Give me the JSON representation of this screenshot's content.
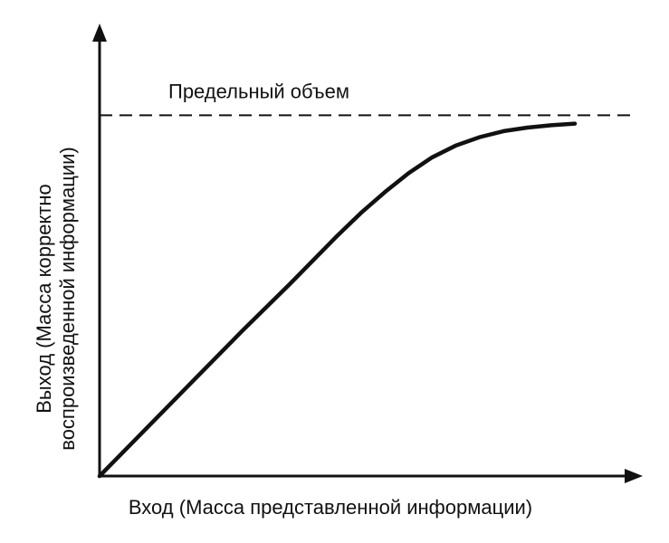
{
  "chart_data": {
    "type": "line",
    "title": "",
    "xlabel": "Вход (Масса представленной информации)",
    "ylabel_line1": "Выход (Масса корректно",
    "ylabel_line2": "воспроизведенной информации)",
    "xlim": [
      0,
      100
    ],
    "ylim": [
      0,
      100
    ],
    "grid": false,
    "ticks": false,
    "series": [
      {
        "x": [
          0,
          10,
          20,
          30,
          40,
          50,
          55,
          60,
          65,
          70,
          75,
          80,
          85,
          90,
          95,
          100
        ],
        "y": [
          0,
          12.2,
          24.4,
          36.6,
          48.4,
          60.6,
          66.4,
          71.6,
          76.4,
          80.4,
          83.4,
          85.5,
          87.0,
          87.9,
          88.5,
          88.9
        ]
      }
    ],
    "annotations": [
      {
        "type": "hline",
        "y": 91,
        "style": "dashed",
        "label": "Предельный объем"
      }
    ]
  },
  "colors": {
    "ink": "#111111",
    "background": "#ffffff"
  }
}
